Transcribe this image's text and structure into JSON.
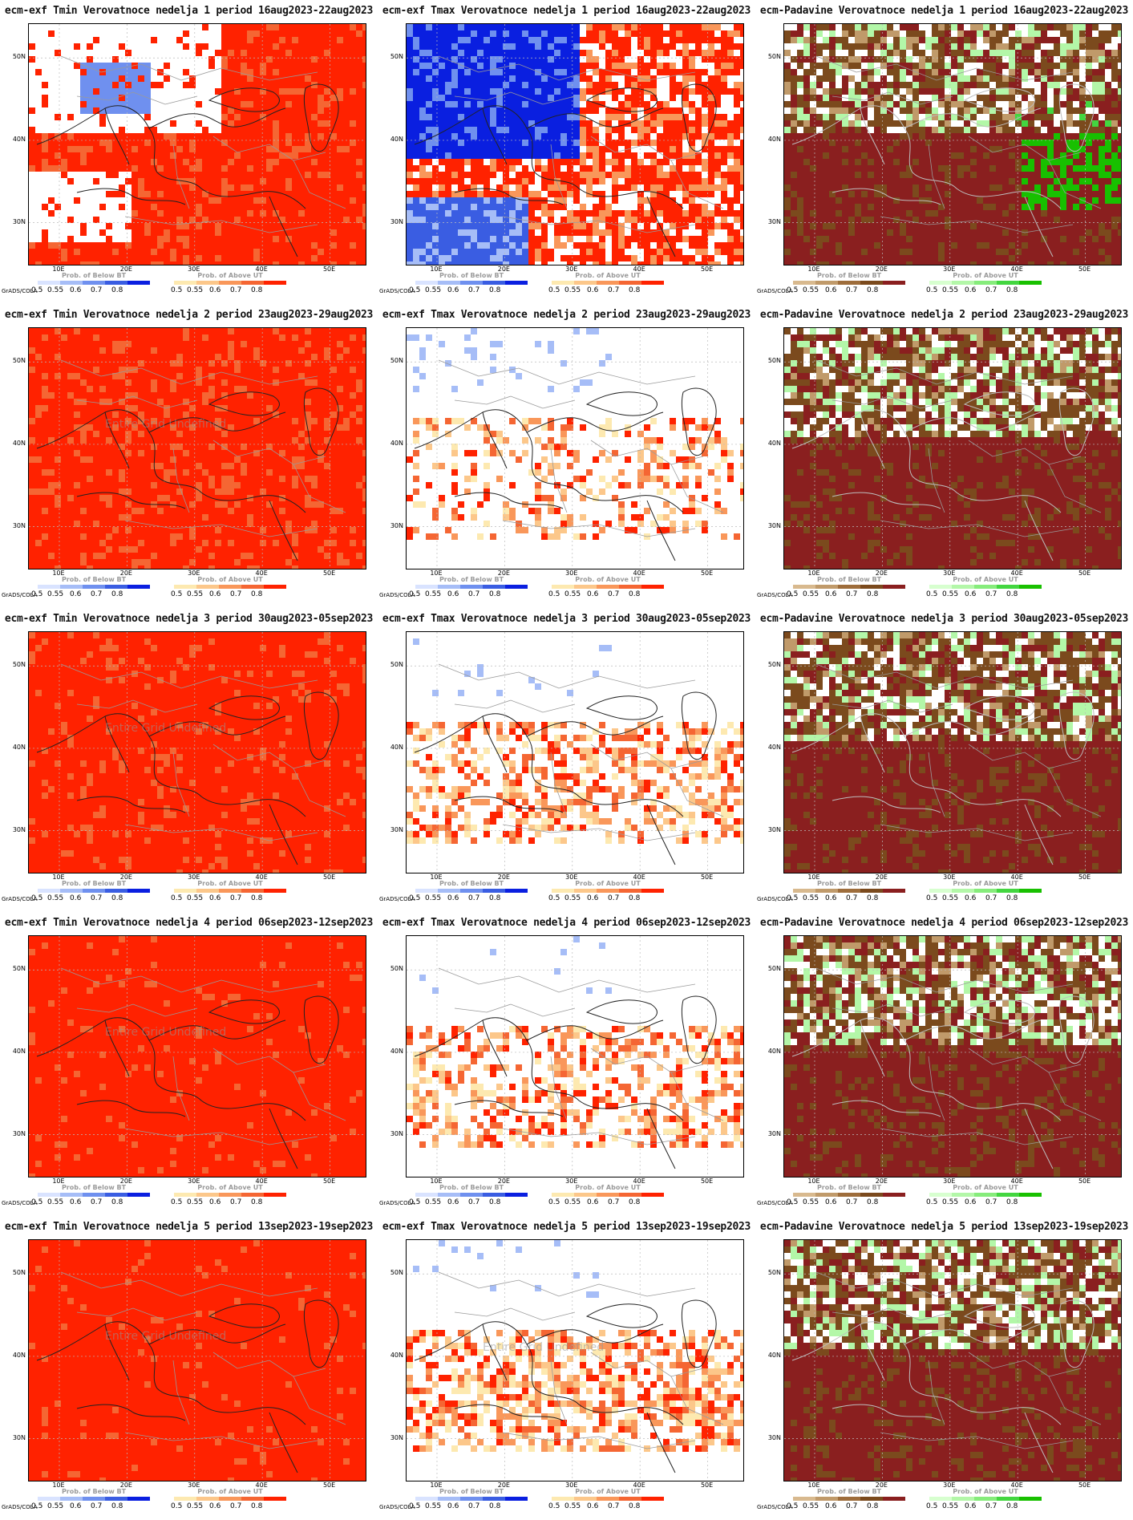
{
  "footer": {
    "software": "GrADS/COLA"
  },
  "axes": {
    "lat_labels": [
      "50N",
      "40N",
      "30N"
    ],
    "lon_labels": [
      "10E",
      "20E",
      "30E",
      "40E",
      "50E"
    ]
  },
  "legends": {
    "below_label": "Prob. of Below BT",
    "above_label": "Prob. of Above UT",
    "ticks": [
      "0.5",
      "0.55",
      "0.6",
      "0.7",
      "0.8"
    ],
    "palettes": {
      "below_temp": [
        "#d9e3ff",
        "#a6bdf7",
        "#6f90ef",
        "#3a5de2",
        "#0a1fe0"
      ],
      "above_temp": [
        "#fde9b0",
        "#fcc78a",
        "#f9975a",
        "#f56633",
        "#ff2200"
      ],
      "below_precip": [
        "#d8b98e",
        "#c09a6a",
        "#9e6d3b",
        "#7b4a1d",
        "#8a1f1f"
      ],
      "above_precip": [
        "#d7ffcf",
        "#b3f7a8",
        "#86ec7b",
        "#43d640",
        "#18c000"
      ]
    }
  },
  "watermark_text": "Entire Grid Undefined",
  "rows": [
    {
      "week": 1,
      "panels": [
        {
          "title": "ecm-exf Tmin Verovatnoce nedelja 1 period 16aug2023-22aug2023",
          "variable": "Tmin",
          "left_legend": "below_temp",
          "right_legend": "above_temp",
          "watermark": false
        },
        {
          "title": "ecm-exf Tmax Verovatnoce nedelja 1 period 16aug2023-22aug2023",
          "variable": "Tmax",
          "left_legend": "below_temp",
          "right_legend": "above_temp",
          "watermark": false
        },
        {
          "title": "ecm-Padavine Verovatnoce nedelja 1 period 16aug2023-22aug2023",
          "variable": "Padavine",
          "left_legend": "below_precip",
          "right_legend": "above_precip",
          "watermark": false
        }
      ]
    },
    {
      "week": 2,
      "panels": [
        {
          "title": "ecm-exf Tmin Verovatnoce nedelja 2 period 23aug2023-29aug2023",
          "variable": "Tmin",
          "left_legend": "below_temp",
          "right_legend": "above_temp",
          "watermark": true
        },
        {
          "title": "ecm-exf Tmax Verovatnoce nedelja 2 period 23aug2023-29aug2023",
          "variable": "Tmax",
          "left_legend": "below_temp",
          "right_legend": "above_temp",
          "watermark": false
        },
        {
          "title": "ecm-Padavine Verovatnoce nedelja 2 period 23aug2023-29aug2023",
          "variable": "Padavine",
          "left_legend": "below_precip",
          "right_legend": "above_precip",
          "watermark": false
        }
      ]
    },
    {
      "week": 3,
      "panels": [
        {
          "title": "ecm-exf Tmin Verovatnoce nedelja 3 period 30aug2023-05sep2023",
          "variable": "Tmin",
          "left_legend": "below_temp",
          "right_legend": "above_temp",
          "watermark": true
        },
        {
          "title": "ecm-exf Tmax Verovatnoce nedelja 3 period 30aug2023-05sep2023",
          "variable": "Tmax",
          "left_legend": "below_temp",
          "right_legend": "above_temp",
          "watermark": false
        },
        {
          "title": "ecm-Padavine Verovatnoce nedelja 3 period 30aug2023-05sep2023",
          "variable": "Padavine",
          "left_legend": "below_precip",
          "right_legend": "above_precip",
          "watermark": false
        }
      ]
    },
    {
      "week": 4,
      "panels": [
        {
          "title": "ecm-exf Tmin Verovatnoce nedelja 4 period 06sep2023-12sep2023",
          "variable": "Tmin",
          "left_legend": "below_temp",
          "right_legend": "above_temp",
          "watermark": true
        },
        {
          "title": "ecm-exf Tmax Verovatnoce nedelja 4 period 06sep2023-12sep2023",
          "variable": "Tmax",
          "left_legend": "below_temp",
          "right_legend": "above_temp",
          "watermark": false
        },
        {
          "title": "ecm-Padavine Verovatnoce nedelja 4 period 06sep2023-12sep2023",
          "variable": "Padavine",
          "left_legend": "below_precip",
          "right_legend": "above_precip",
          "watermark": false
        }
      ]
    },
    {
      "week": 5,
      "panels": [
        {
          "title": "ecm-exf Tmin Verovatnoce nedelja 5 period 13sep2023-19sep2023",
          "variable": "Tmin",
          "left_legend": "below_temp",
          "right_legend": "above_temp",
          "watermark": true
        },
        {
          "title": "ecm-exf Tmax Verovatnoce nedelja 5 period 13sep2023-19sep2023",
          "variable": "Tmax",
          "left_legend": "below_temp",
          "right_legend": "above_temp",
          "watermark": true
        },
        {
          "title": "ecm-Padavine Verovatnoce nedelja 5 period 13sep2023-19sep2023",
          "variable": "Padavine",
          "left_legend": "below_precip",
          "right_legend": "above_precip",
          "watermark": false
        }
      ]
    }
  ]
}
